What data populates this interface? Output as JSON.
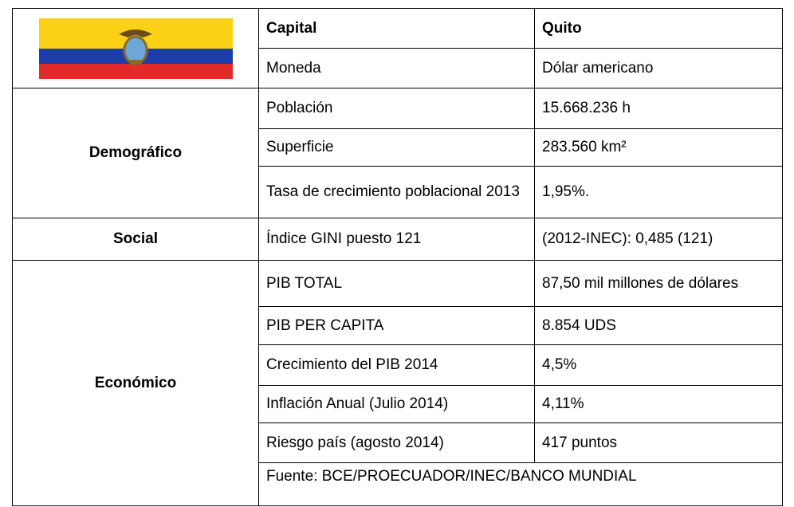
{
  "table": {
    "sections": [
      {
        "items": [
          {
            "label": "Capital",
            "value": "Quito"
          },
          {
            "label": "Moneda",
            "value": "Dólar americano"
          }
        ]
      },
      {
        "name": "Demográfico",
        "items": [
          {
            "label": "Población",
            "value": "15.668.236 h"
          },
          {
            "label": "Superficie",
            "value": "283.560 km²"
          },
          {
            "label": "Tasa de crecimiento poblacional 2013",
            "value": "1,95%."
          }
        ]
      },
      {
        "name": "Social",
        "items": [
          {
            "label": "Índice GINI puesto 121",
            "value": "(2012-INEC): 0,485 (121)"
          }
        ]
      },
      {
        "name": "Económico",
        "items": [
          {
            "label": "PIB TOTAL",
            "value": "87,50 mil millones de dólares"
          },
          {
            "label": "PIB PER CAPITA",
            "value": "8.854 UDS"
          },
          {
            "label": "Crecimiento del PIB 2014",
            "value": "4,5%"
          },
          {
            "label": "Inflación  Anual  (Julio 2014)",
            "value": "4,11%"
          },
          {
            "label": "Riesgo país (agosto 2014)",
            "value": "417 puntos"
          }
        ]
      }
    ],
    "source": "Fuente: BCE/PROECUADOR/INEC/BANCO MUNDIAL"
  }
}
